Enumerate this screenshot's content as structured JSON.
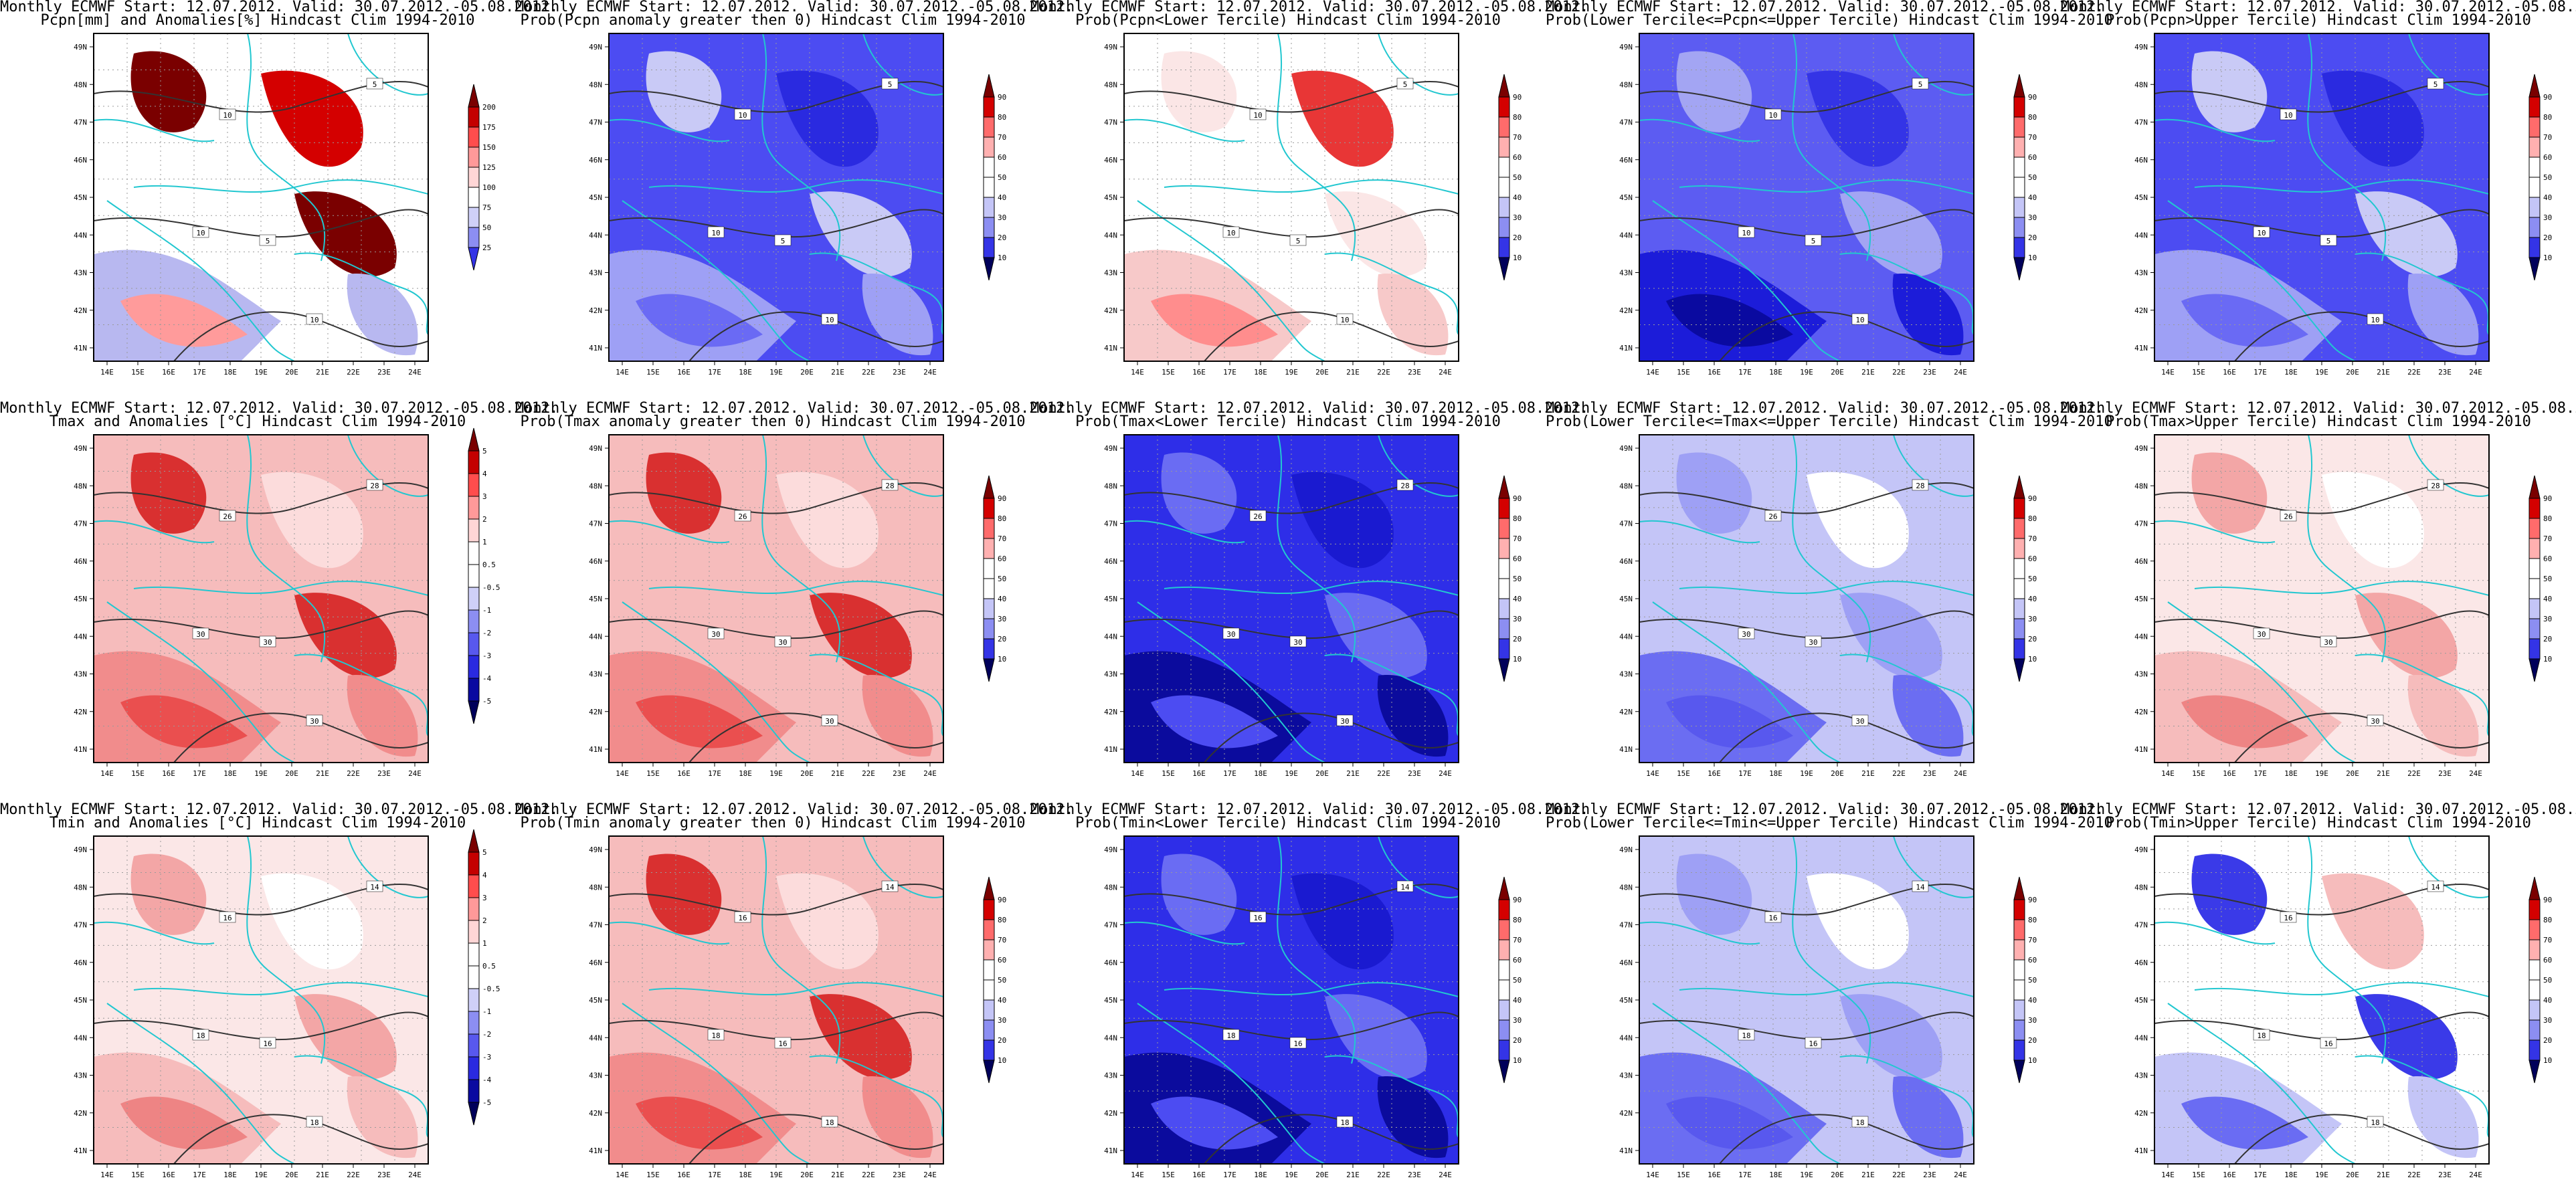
{
  "header": "Monthly ECMWF Start: 12.07.2012. Valid: 30.07.2012.-05.08.2012.",
  "colors": {
    "contour": "#333333",
    "borders": "#22c7d0",
    "frame": "#000000"
  },
  "colorbars": {
    "pcpn": [
      "200",
      "175",
      "150",
      "125",
      "100",
      "75",
      "50",
      "25"
    ],
    "anom": [
      "5",
      "4",
      "3",
      "2",
      "1",
      "0.5",
      "-0.5",
      "-1",
      "-2",
      "-3",
      "-4",
      "-5"
    ],
    "prob": [
      "90",
      "80",
      "70",
      "60",
      "50",
      "40",
      "30",
      "20",
      "10"
    ]
  },
  "lat_labels": [
    "49N",
    "48N",
    "47N",
    "46N",
    "45N",
    "44N",
    "43N",
    "42N",
    "41N"
  ],
  "lon_labels": [
    "14E",
    "15E",
    "16E",
    "17E",
    "18E",
    "19E",
    "20E",
    "21E",
    "22E",
    "23E",
    "24E"
  ],
  "panels": [
    {
      "subtitle": "Pcpn[mm] and Anomalies[%] Hindcast Clim 1994-2010",
      "cbar": "pcpn",
      "scheme": "pcpn",
      "contours": [
        "10",
        "10",
        "10",
        "5",
        "5"
      ]
    },
    {
      "subtitle": "Prob(Pcpn anomaly greater then 0) Hindcast Clim 1994-2010",
      "cbar": "prob",
      "scheme": "blue",
      "contours": [
        "10",
        "10",
        "10",
        "5",
        "5"
      ]
    },
    {
      "subtitle": "Prob(Pcpn<Lower Tercile) Hindcast Clim 1994-2010",
      "cbar": "prob",
      "scheme": "whitepink",
      "contours": [
        "10",
        "10",
        "10",
        "5",
        "5"
      ]
    },
    {
      "subtitle": "Prob(Lower Tercile<=Pcpn<=Upper Tercile) Hindcast Clim 1994-2010",
      "cbar": "prob",
      "scheme": "deepblue",
      "contours": [
        "10",
        "10",
        "10",
        "5",
        "5"
      ]
    },
    {
      "subtitle": "Prob(Pcpn>Upper Tercile) Hindcast Clim 1994-2010",
      "cbar": "prob",
      "scheme": "blue",
      "contours": [
        "10",
        "10",
        "10",
        "5",
        "5"
      ]
    },
    {
      "subtitle": "Tmax and Anomalies [°C] Hindcast Clim 1994-2010",
      "cbar": "anom",
      "scheme": "red",
      "contours": [
        "26",
        "30",
        "30",
        "28",
        "30"
      ]
    },
    {
      "subtitle": "Prob(Tmax anomaly greater then 0) Hindcast Clim 1994-2010",
      "cbar": "prob",
      "scheme": "red",
      "contours": [
        "26",
        "30",
        "30",
        "28",
        "30"
      ]
    },
    {
      "subtitle": "Prob(Tmax<Lower Tercile) Hindcast Clim 1994-2010",
      "cbar": "prob",
      "scheme": "navy",
      "contours": [
        "26",
        "30",
        "30",
        "28",
        "30"
      ]
    },
    {
      "subtitle": "Prob(Lower Tercile<=Tmax<=Upper Tercile) Hindcast Clim 1994-2010",
      "cbar": "prob",
      "scheme": "lightblue",
      "contours": [
        "26",
        "30",
        "30",
        "28",
        "30"
      ]
    },
    {
      "subtitle": "Prob(Tmax>Upper Tercile) Hindcast Clim 1994-2010",
      "cbar": "prob",
      "scheme": "pinklight",
      "contours": [
        "26",
        "30",
        "30",
        "28",
        "30"
      ]
    },
    {
      "subtitle": "Tmin and Anomalies [°C] Hindcast Clim 1994-2010",
      "cbar": "anom",
      "scheme": "pinklight",
      "contours": [
        "16",
        "18",
        "18",
        "14",
        "16"
      ]
    },
    {
      "subtitle": "Prob(Tmin anomaly greater then 0) Hindcast Clim 1994-2010",
      "cbar": "prob",
      "scheme": "red",
      "contours": [
        "16",
        "18",
        "18",
        "14",
        "16"
      ]
    },
    {
      "subtitle": "Prob(Tmin<Lower Tercile) Hindcast Clim 1994-2010",
      "cbar": "prob",
      "scheme": "navy",
      "contours": [
        "16",
        "18",
        "18",
        "14",
        "16"
      ]
    },
    {
      "subtitle": "Prob(Lower Tercile<=Tmin<=Upper Tercile) Hindcast Clim 1994-2010",
      "cbar": "prob",
      "scheme": "lightblue",
      "contours": [
        "16",
        "18",
        "18",
        "14",
        "16"
      ]
    },
    {
      "subtitle": "Prob(Tmin>Upper Tercile) Hindcast Clim 1994-2010",
      "cbar": "prob",
      "scheme": "bluepink",
      "contours": [
        "16",
        "18",
        "18",
        "14",
        "16"
      ]
    }
  ]
}
